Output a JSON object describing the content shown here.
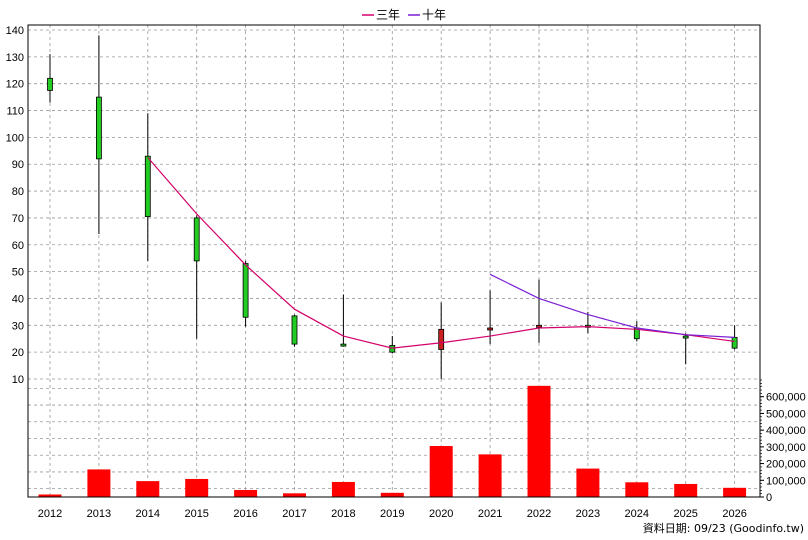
{
  "chart_data": {
    "type": "candlestick",
    "legend": {
      "position": "top-center",
      "items": [
        {
          "label": "三年",
          "color": "#d4006a"
        },
        {
          "label": "十年",
          "color": "#7a1fd6"
        }
      ]
    },
    "grid": true,
    "price_axis": {
      "side": "left",
      "ticks": [
        "140",
        "130",
        "120",
        "110",
        "100",
        "90",
        "80",
        "70",
        "60",
        "50",
        "40",
        "30",
        "20",
        "10"
      ],
      "range": [
        10,
        140
      ]
    },
    "volume_axis": {
      "side": "right",
      "ticks": [
        "600,000",
        "500,000",
        "400,000",
        "300,000",
        "200,000",
        "100,000",
        "0"
      ],
      "range": [
        0,
        700000
      ]
    },
    "categories": [
      "2012",
      "2013",
      "2014",
      "2015",
      "2016",
      "2017",
      "2018",
      "2019",
      "2020",
      "2021",
      "2022",
      "2023",
      "2024",
      "2025",
      "2026"
    ],
    "candles": [
      {
        "year": "2012",
        "open": 117.5,
        "close": 122,
        "high": 131,
        "low": 113,
        "color": "#22cc22"
      },
      {
        "year": "2013",
        "open": 115,
        "close": 92,
        "high": 138,
        "low": 64,
        "color": "#22cc22"
      },
      {
        "year": "2014",
        "open": 93,
        "close": 70.5,
        "high": 109,
        "low": 54,
        "color": "#22cc22"
      },
      {
        "year": "2015",
        "open": 70,
        "close": 54,
        "high": 71,
        "low": 25,
        "color": "#22cc22"
      },
      {
        "year": "2016",
        "open": 53,
        "close": 33,
        "high": 54,
        "low": 29.5,
        "color": "#22cc22"
      },
      {
        "year": "2017",
        "open": 33.5,
        "close": 23,
        "high": 34,
        "low": 22,
        "color": "#22cc22"
      },
      {
        "year": "2018",
        "open": 23,
        "close": 23,
        "high": 41.5,
        "low": 22,
        "color": "#22cc22"
      },
      {
        "year": "2019",
        "open": 22.5,
        "close": 20,
        "high": 26,
        "low": 19.5,
        "color": "#22cc22"
      },
      {
        "year": "2020",
        "open": 21,
        "close": 28.5,
        "high": 38.5,
        "low": 10,
        "color": "#cc2020"
      },
      {
        "year": "2021",
        "open": 28.5,
        "close": 29,
        "high": 43,
        "low": 23,
        "color": "#cc2020"
      },
      {
        "year": "2022",
        "open": 30,
        "close": 30,
        "high": 47,
        "low": 23.5,
        "color": "#cc2020"
      },
      {
        "year": "2023",
        "open": 30,
        "close": 30,
        "high": 35,
        "low": 27,
        "color": "#22cc22"
      },
      {
        "year": "2024",
        "open": 29,
        "close": 25,
        "high": 31.5,
        "low": 24,
        "color": "#22cc22"
      },
      {
        "year": "2025",
        "open": 26,
        "close": 26,
        "high": 27,
        "low": 15.5,
        "color": "#22cc22"
      },
      {
        "year": "2026",
        "open": 25.5,
        "close": 21.5,
        "high": 30,
        "low": 21,
        "color": "#22cc22"
      }
    ],
    "series": [
      {
        "name": "三年",
        "color": "#d4006a",
        "x": [
          "2014",
          "2015",
          "2016",
          "2017",
          "2018",
          "2019",
          "2020",
          "2021",
          "2022",
          "2023",
          "2024",
          "2025",
          "2026"
        ],
        "values": [
          92.5,
          71.5,
          52.5,
          36,
          26,
          21.5,
          23.5,
          26,
          29,
          29.5,
          28.5,
          26.5,
          24
        ]
      },
      {
        "name": "十年",
        "color": "#7a1fd6",
        "x": [
          "2021",
          "2022",
          "2023",
          "2024",
          "2025",
          "2026"
        ],
        "values": [
          49,
          40,
          34,
          29,
          26.5,
          25.5
        ]
      }
    ],
    "volume": {
      "color": "#ff0000",
      "values": [
        15000,
        165000,
        95000,
        108000,
        42000,
        22000,
        90000,
        25000,
        305000,
        255000,
        665000,
        170000,
        88000,
        78000,
        55000
      ]
    },
    "footer": "資料日期: 09/23 (Goodinfo.tw)"
  }
}
